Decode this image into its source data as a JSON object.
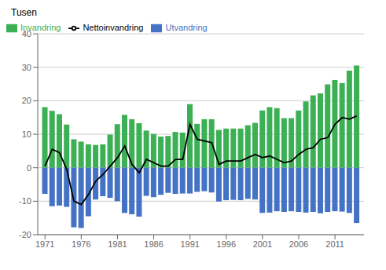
{
  "chart_data": {
    "type": "bar",
    "ylabel": "Tusen",
    "x": [
      1971,
      1972,
      1973,
      1974,
      1975,
      1976,
      1977,
      1978,
      1979,
      1980,
      1981,
      1982,
      1983,
      1984,
      1985,
      1986,
      1987,
      1988,
      1989,
      1990,
      1991,
      1992,
      1993,
      1994,
      1995,
      1996,
      1997,
      1998,
      1999,
      2000,
      2001,
      2002,
      2003,
      2004,
      2005,
      2006,
      2007,
      2008,
      2009,
      2010,
      2011,
      2012,
      2013,
      2014
    ],
    "series": [
      {
        "name": "Invandring",
        "type": "bar",
        "color": "#3CB054",
        "values": [
          18.1,
          17.0,
          16.0,
          12.9,
          8.5,
          7.8,
          7.0,
          6.8,
          7.0,
          9.9,
          13.0,
          15.8,
          14.5,
          13.3,
          11.1,
          10.1,
          9.3,
          9.5,
          10.7,
          10.5,
          19.0,
          13.1,
          14.5,
          14.5,
          11.3,
          11.7,
          11.7,
          11.7,
          12.7,
          13.4,
          17.1,
          18.1,
          17.8,
          14.8,
          14.8,
          17.1,
          19.8,
          21.6,
          22.2,
          24.9,
          26.2,
          25.3,
          29.0,
          30.5
        ]
      },
      {
        "name": "Utvandring",
        "type": "bar",
        "color": "#4472C4",
        "values": [
          -7.8,
          -11.5,
          -11.3,
          -11.7,
          -17.8,
          -18.0,
          -14.5,
          -9.5,
          -8.5,
          -9.0,
          -10.0,
          -13.5,
          -13.9,
          -14.6,
          -8.4,
          -8.8,
          -8.1,
          -7.5,
          -7.8,
          -7.7,
          -7.7,
          -7.2,
          -7.0,
          -7.4,
          -10.1,
          -9.7,
          -9.6,
          -9.7,
          -9.3,
          -9.5,
          -13.5,
          -13.4,
          -13.0,
          -13.2,
          -13.0,
          -13.2,
          -13.4,
          -13.2,
          -13.6,
          -13.2,
          -13.0,
          -13.1,
          -13.5,
          -16.5
        ]
      },
      {
        "name": "Nettoinvandring",
        "type": "line",
        "color": "#000000",
        "values": [
          0.5,
          5.5,
          4.5,
          -0.5,
          -10.0,
          -11.0,
          -8.0,
          -4.0,
          -2.0,
          0.5,
          3.0,
          6.5,
          1.0,
          -1.5,
          2.5,
          1.5,
          0.5,
          0.5,
          2.5,
          2.5,
          13.0,
          8.5,
          8.0,
          7.5,
          1.0,
          2.0,
          2.0,
          2.0,
          3.0,
          4.0,
          3.0,
          3.5,
          2.5,
          1.5,
          2.0,
          4.0,
          5.5,
          6.0,
          8.5,
          9.0,
          13.0,
          15.0,
          14.5,
          15.5
        ]
      }
    ],
    "xlim": [
      1970,
      2015
    ],
    "xticks": [
      1971,
      1976,
      1981,
      1986,
      1991,
      1996,
      2001,
      2006,
      2011
    ],
    "ylim": [
      -20,
      40
    ],
    "yticks": [
      -20,
      -10,
      0,
      10,
      20,
      30,
      40
    ],
    "grid": true,
    "legend": "upper left"
  }
}
